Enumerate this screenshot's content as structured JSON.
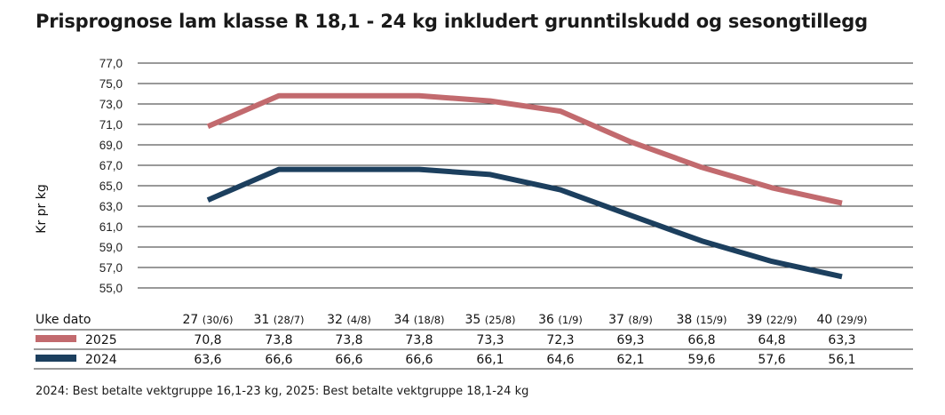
{
  "title": "Prisprognose lam klasse R 18,1 - 24 kg inkludert grunntilskudd og sesongtillegg",
  "footnote": "2024: Best betalte vektgruppe 16,1-23 kg, 2025: Best betalte vektgruppe 18,1-24 kg",
  "colors": {
    "s2025": "#c26a6e",
    "s2024": "#1c3f5e",
    "grid": "#333333"
  },
  "chart_data": {
    "type": "line",
    "title": "Prisprognose lam klasse R 18,1 - 24 kg inkludert grunntilskudd og sesongtillegg",
    "ylabel": "Kr pr kg",
    "ylim": [
      55.0,
      77.0
    ],
    "yticks": [
      "55,0",
      "57,0",
      "59,0",
      "61,0",
      "63,0",
      "65,0",
      "67,0",
      "69,0",
      "71,0",
      "73,0",
      "75,0",
      "77,0"
    ],
    "grid": true,
    "table_header_label": "Uke dato",
    "categories": [
      {
        "week": "27",
        "date": "(30/6)"
      },
      {
        "week": "31",
        "date": "(28/7)"
      },
      {
        "week": "32",
        "date": "(4/8)"
      },
      {
        "week": "34",
        "date": "(18/8)"
      },
      {
        "week": "35",
        "date": "(25/8)"
      },
      {
        "week": "36",
        "date": "(1/9)"
      },
      {
        "week": "37",
        "date": "(8/9)"
      },
      {
        "week": "38",
        "date": "(15/9)"
      },
      {
        "week": "39",
        "date": "(22/9)"
      },
      {
        "week": "40",
        "date": "(29/9)"
      }
    ],
    "series": [
      {
        "name": "2025",
        "color": "#c26a6e",
        "values": [
          70.8,
          73.8,
          73.8,
          73.8,
          73.3,
          72.3,
          69.3,
          66.8,
          64.8,
          63.3
        ],
        "labels": [
          "70,8",
          "73,8",
          "73,8",
          "73,8",
          "73,3",
          "72,3",
          "69,3",
          "66,8",
          "64,8",
          "63,3"
        ]
      },
      {
        "name": "2024",
        "color": "#1c3f5e",
        "values": [
          63.6,
          66.6,
          66.6,
          66.6,
          66.1,
          64.6,
          62.1,
          59.6,
          57.6,
          56.1
        ],
        "labels": [
          "63,6",
          "66,6",
          "66,6",
          "66,6",
          "66,1",
          "64,6",
          "62,1",
          "59,6",
          "57,6",
          "56,1"
        ]
      }
    ]
  }
}
